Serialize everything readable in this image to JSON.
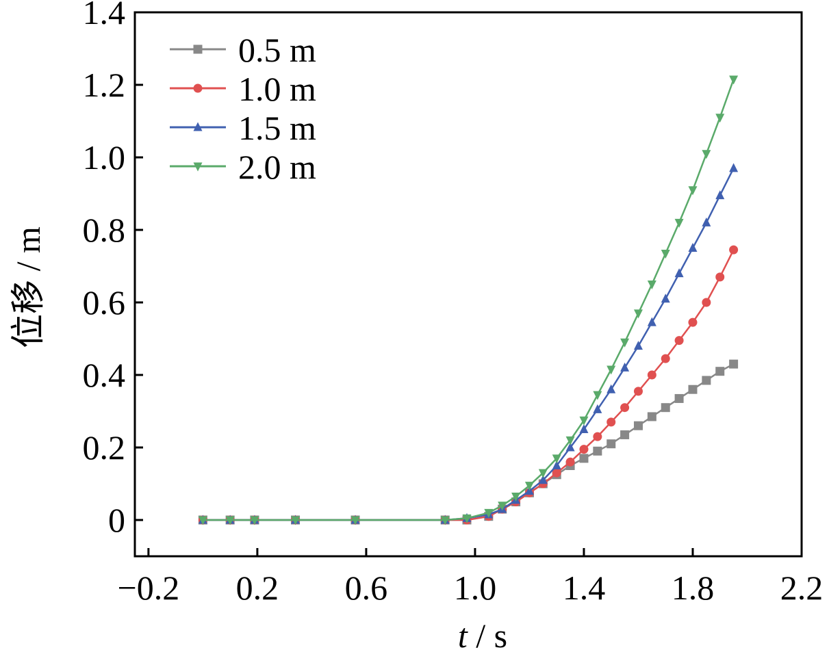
{
  "chart_data": {
    "type": "line",
    "xlabel_italic": "t",
    "xlabel_rest": " / s",
    "ylabel": "位移 / m",
    "xlim": [
      -0.25,
      2.2
    ],
    "ylim": [
      -0.1,
      1.4
    ],
    "xticks": [
      -0.2,
      0.2,
      0.6,
      1.0,
      1.4,
      1.8,
      2.2
    ],
    "xtick_labels": [
      "−0.2",
      "0.2",
      "0.6",
      "1.0",
      "1.4",
      "1.8",
      "2.2"
    ],
    "yticks": [
      0,
      0.2,
      0.4,
      0.6,
      0.8,
      1.0,
      1.2,
      1.4
    ],
    "ytick_labels": [
      "0",
      "0.2",
      "0.4",
      "0.6",
      "0.8",
      "1.0",
      "1.2",
      "1.4"
    ],
    "legend_position": "top-left",
    "grid": false,
    "series": [
      {
        "name": "0.5 m",
        "color": "#888888",
        "marker": "square",
        "x": [
          0.0,
          0.1,
          0.19,
          0.34,
          0.56,
          0.89,
          0.97,
          1.05,
          1.1,
          1.15,
          1.2,
          1.25,
          1.3,
          1.35,
          1.4,
          1.45,
          1.5,
          1.55,
          1.6,
          1.65,
          1.7,
          1.75,
          1.8,
          1.85,
          1.9,
          1.95
        ],
        "y": [
          0,
          0,
          0,
          0,
          0,
          0,
          0,
          0.01,
          0.03,
          0.05,
          0.075,
          0.1,
          0.125,
          0.15,
          0.17,
          0.19,
          0.21,
          0.235,
          0.26,
          0.285,
          0.31,
          0.335,
          0.36,
          0.385,
          0.41,
          0.43
        ]
      },
      {
        "name": "1.0 m",
        "color": "#e05050",
        "marker": "circle",
        "x": [
          0.0,
          0.1,
          0.19,
          0.34,
          0.56,
          0.89,
          0.97,
          1.05,
          1.1,
          1.15,
          1.2,
          1.25,
          1.3,
          1.35,
          1.4,
          1.45,
          1.5,
          1.55,
          1.6,
          1.65,
          1.7,
          1.75,
          1.8,
          1.85,
          1.9,
          1.95
        ],
        "y": [
          0,
          0,
          0,
          0,
          0,
          0,
          0,
          0.01,
          0.03,
          0.05,
          0.075,
          0.1,
          0.13,
          0.16,
          0.195,
          0.23,
          0.27,
          0.31,
          0.355,
          0.4,
          0.445,
          0.495,
          0.545,
          0.6,
          0.67,
          0.745
        ]
      },
      {
        "name": "1.5 m",
        "color": "#4060b0",
        "marker": "triangle-up",
        "x": [
          0.0,
          0.1,
          0.19,
          0.34,
          0.56,
          0.89,
          0.97,
          1.05,
          1.1,
          1.15,
          1.2,
          1.25,
          1.3,
          1.35,
          1.4,
          1.45,
          1.5,
          1.55,
          1.6,
          1.65,
          1.7,
          1.75,
          1.8,
          1.85,
          1.9,
          1.95
        ],
        "y": [
          0,
          0,
          0,
          0,
          0,
          0,
          0.005,
          0.015,
          0.03,
          0.055,
          0.08,
          0.11,
          0.15,
          0.2,
          0.25,
          0.305,
          0.36,
          0.42,
          0.48,
          0.545,
          0.61,
          0.68,
          0.75,
          0.82,
          0.895,
          0.97
        ]
      },
      {
        "name": "2.0 m",
        "color": "#5aaa6a",
        "marker": "triangle-down",
        "x": [
          0.0,
          0.1,
          0.19,
          0.34,
          0.56,
          0.89,
          0.97,
          1.05,
          1.1,
          1.15,
          1.2,
          1.25,
          1.3,
          1.35,
          1.4,
          1.45,
          1.5,
          1.55,
          1.6,
          1.65,
          1.7,
          1.75,
          1.8,
          1.85,
          1.9,
          1.95
        ],
        "y": [
          0,
          0,
          0,
          0,
          0,
          0,
          0.005,
          0.02,
          0.04,
          0.065,
          0.095,
          0.13,
          0.17,
          0.22,
          0.275,
          0.345,
          0.415,
          0.49,
          0.57,
          0.65,
          0.735,
          0.82,
          0.91,
          1.01,
          1.11,
          1.215
        ]
      }
    ]
  }
}
